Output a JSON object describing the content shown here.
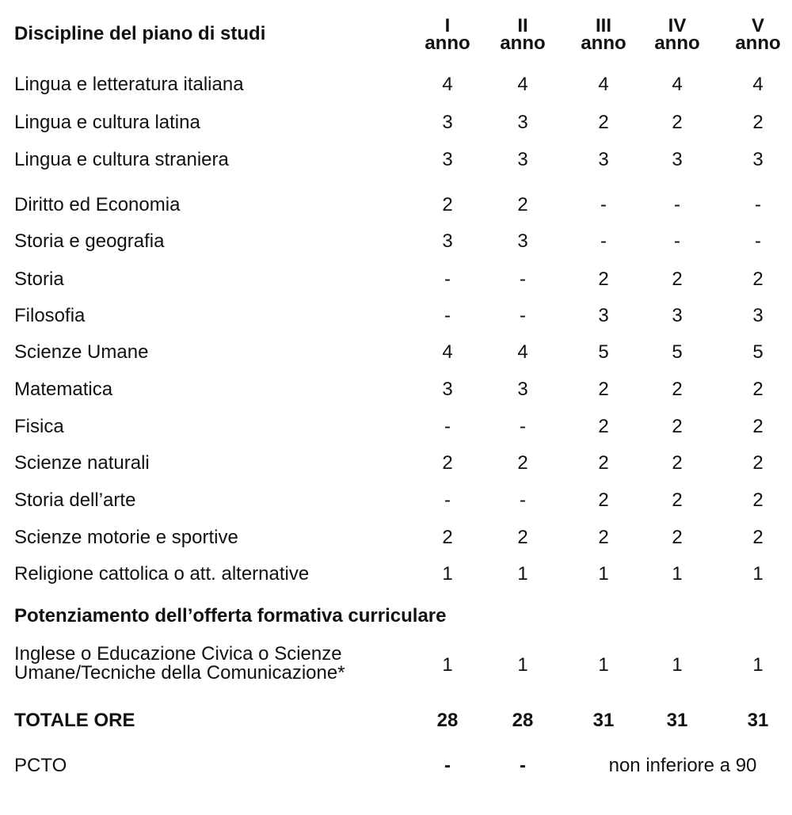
{
  "header": {
    "title": "Discipline del piano di studi",
    "columns": [
      {
        "numeral": "I",
        "unit": "anno"
      },
      {
        "numeral": "II",
        "unit": "anno"
      },
      {
        "numeral": "III",
        "unit": "anno"
      },
      {
        "numeral": "IV",
        "unit": "anno"
      },
      {
        "numeral": "V",
        "unit": "anno"
      }
    ]
  },
  "rows": [
    {
      "name": "Lingua e letteratura italiana",
      "values": [
        "4",
        "4",
        "4",
        "4",
        "4"
      ]
    },
    {
      "name": "Lingua e cultura latina",
      "values": [
        "3",
        "3",
        "2",
        "2",
        "2"
      ]
    },
    {
      "name": "Lingua e cultura straniera",
      "values": [
        "3",
        "3",
        "3",
        "3",
        "3"
      ]
    },
    {
      "name": "Diritto ed Economia",
      "values": [
        "2",
        "2",
        "-",
        "-",
        "-"
      ]
    },
    {
      "name": "Storia e geografia",
      "values": [
        "3",
        "3",
        "-",
        "-",
        "-"
      ]
    },
    {
      "name": "Storia",
      "values": [
        "-",
        "-",
        "2",
        "2",
        "2"
      ]
    },
    {
      "name": "Filosofia",
      "values": [
        "-",
        "-",
        "3",
        "3",
        "3"
      ]
    },
    {
      "name": "Scienze Umane",
      "values": [
        "4",
        "4",
        "5",
        "5",
        "5"
      ]
    },
    {
      "name": "Matematica",
      "values": [
        "3",
        "3",
        "2",
        "2",
        "2"
      ]
    },
    {
      "name": "Fisica",
      "values": [
        "-",
        "-",
        "2",
        "2",
        "2"
      ]
    },
    {
      "name": "Scienze naturali",
      "values": [
        "2",
        "2",
        "2",
        "2",
        "2"
      ]
    },
    {
      "name": "Storia dell’arte",
      "values": [
        "-",
        "-",
        "2",
        "2",
        "2"
      ]
    },
    {
      "name": "Scienze motorie e sportive",
      "values": [
        "2",
        "2",
        "2",
        "2",
        "2"
      ]
    },
    {
      "name": "Religione cattolica o att. alternative",
      "values": [
        "1",
        "1",
        "1",
        "1",
        "1"
      ]
    }
  ],
  "section": {
    "title": "Potenziamento dell’offerta formativa curriculare"
  },
  "extra": {
    "name_lines": [
      "Inglese o Educazione Civica o Scienze",
      "Umane/Tecniche della Comunicazione*"
    ],
    "values": [
      "1",
      "1",
      "1",
      "1",
      "1"
    ]
  },
  "total": {
    "label": "TOTALE ORE",
    "values": [
      "28",
      "28",
      "31",
      "31",
      "31"
    ]
  },
  "pcto": {
    "label": "PCTO",
    "values": [
      "-",
      "-"
    ],
    "note": "non inferiore a 90"
  }
}
